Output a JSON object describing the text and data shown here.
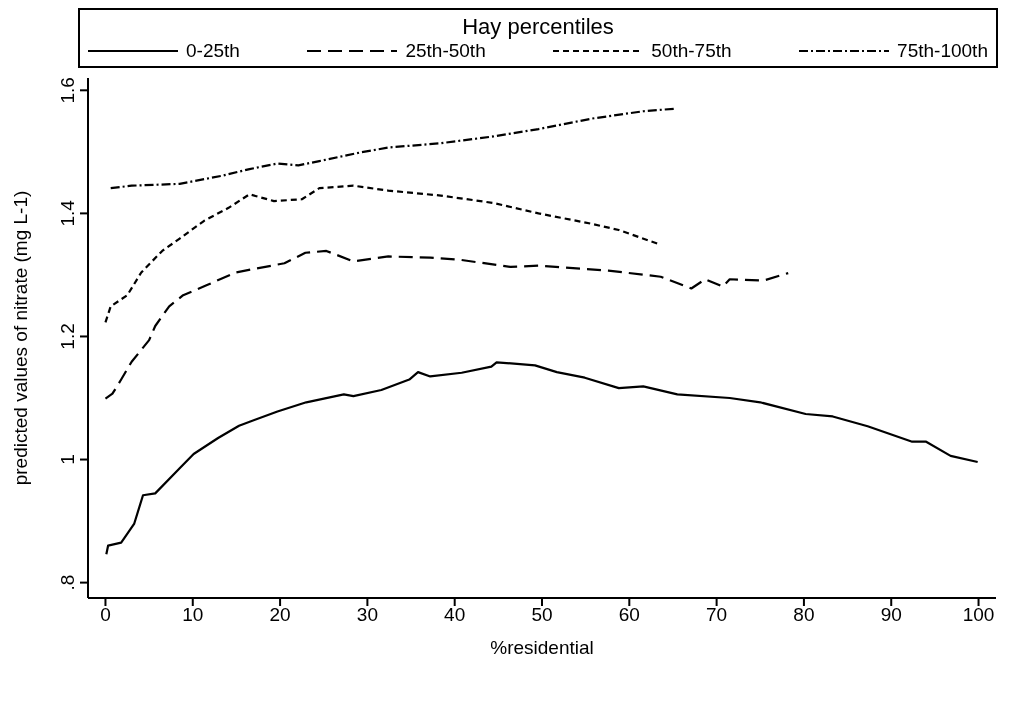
{
  "chart_data": {
    "type": "line",
    "legend_title": "Hay percentiles",
    "legend": "top",
    "xlabel": "%residential",
    "ylabel": "predicted values of nitrate (mg L-1)",
    "xlim": [
      -2,
      102
    ],
    "xticks": [
      0,
      10,
      20,
      30,
      40,
      50,
      60,
      70,
      80,
      90,
      100
    ],
    "ylim": [
      0.775,
      1.62
    ],
    "yticks": [
      {
        "value": 0.8,
        "label": ".8"
      },
      1,
      1.2,
      1.4,
      1.6
    ],
    "marker": "none",
    "series": [
      {
        "name": "0-25th",
        "color": "#000000",
        "line_style": "solid",
        "x": [
          0.1,
          0.3,
          1.8,
          3.3,
          4.3,
          5.7,
          8.5,
          10.1,
          12.9,
          15.3,
          19.7,
          23,
          27.3,
          28.4,
          31.6,
          34.8,
          35.8,
          37.2,
          40.8,
          44.2,
          44.8,
          49.2,
          51.7,
          54.9,
          58.8,
          61.6,
          65.5,
          71.5,
          75,
          80.2,
          83.3,
          87.3,
          92.4,
          94,
          96.8,
          99.9
        ],
        "values": [
          0.846,
          0.86,
          0.865,
          0.896,
          0.942,
          0.945,
          0.986,
          1.009,
          1.035,
          1.055,
          1.078,
          1.093,
          1.106,
          1.103,
          1.113,
          1.13,
          1.142,
          1.135,
          1.141,
          1.151,
          1.158,
          1.153,
          1.142,
          1.133,
          1.116,
          1.119,
          1.106,
          1.1,
          1.093,
          1.074,
          1.07,
          1.054,
          1.029,
          1.029,
          1.006,
          0.996
        ]
      },
      {
        "name": "25th-50th",
        "color": "#000000",
        "line_style": "dashed",
        "x": [
          0,
          0.8,
          1.8,
          3,
          5,
          5.7,
          7.3,
          8.9,
          11.7,
          14.9,
          20.5,
          22.9,
          25.3,
          28.4,
          32.4,
          37.2,
          40.4,
          46.4,
          49.6,
          57.6,
          63.6,
          67.1,
          68.7,
          70.7,
          71.5,
          75.4,
          78.2
        ],
        "values": [
          1.099,
          1.107,
          1.13,
          1.159,
          1.194,
          1.217,
          1.249,
          1.267,
          1.284,
          1.304,
          1.319,
          1.336,
          1.339,
          1.322,
          1.33,
          1.328,
          1.325,
          1.313,
          1.315,
          1.307,
          1.297,
          1.278,
          1.293,
          1.281,
          1.293,
          1.291,
          1.303
        ]
      },
      {
        "name": "50th-75th",
        "color": "#000000",
        "line_style": "dotted",
        "x": [
          0,
          0.6,
          2.5,
          4.1,
          6.5,
          8.5,
          11.3,
          14.1,
          16.5,
          19.3,
          22.5,
          24.5,
          28.4,
          32.4,
          38.4,
          44.4,
          49.6,
          55.7,
          58.8,
          63.2
        ],
        "values": [
          1.223,
          1.249,
          1.267,
          1.304,
          1.339,
          1.359,
          1.388,
          1.409,
          1.431,
          1.42,
          1.423,
          1.441,
          1.445,
          1.437,
          1.429,
          1.417,
          1.4,
          1.383,
          1.373,
          1.351
        ]
      },
      {
        "name": "75th-100th",
        "color": "#000000",
        "line_style": "dashdot",
        "x": [
          0.6,
          3,
          8.5,
          13.3,
          16.5,
          19.7,
          22.1,
          24.5,
          29.2,
          32.4,
          38.4,
          44.4,
          49.6,
          55.7,
          61.6,
          65.1
        ],
        "values": [
          1.441,
          1.445,
          1.448,
          1.461,
          1.472,
          1.481,
          1.478,
          1.485,
          1.499,
          1.507,
          1.514,
          1.525,
          1.537,
          1.554,
          1.566,
          1.57
        ]
      }
    ]
  }
}
